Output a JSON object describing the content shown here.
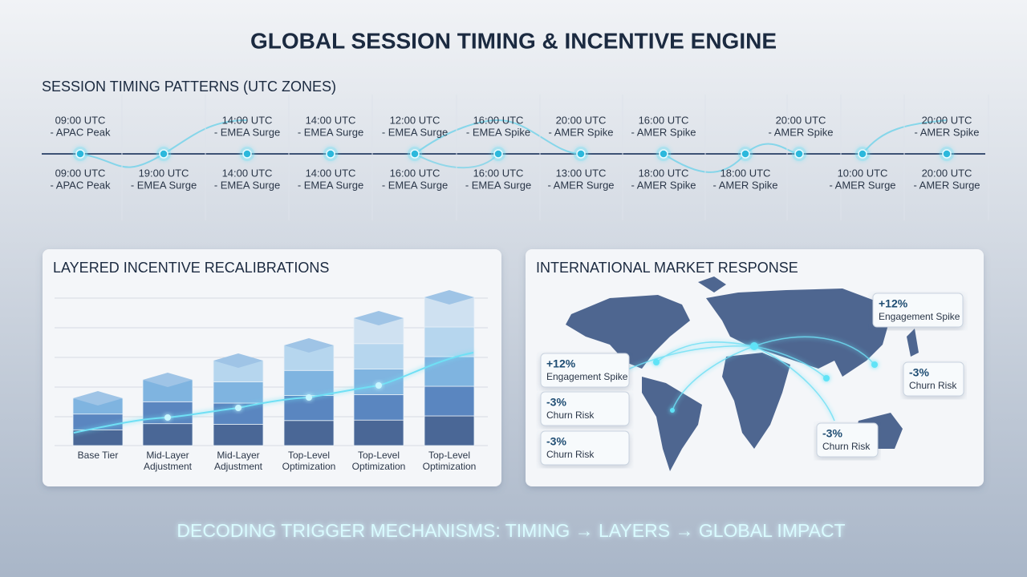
{
  "title": "GLOBAL SESSION TIMING & INCENTIVE ENGINE",
  "timing": {
    "title": "SESSION TIMING PATTERNS (UTC ZONES)",
    "top": [
      {
        "time": "09:00 UTC",
        "label": "- APAC Peak"
      },
      {
        "time": "14:00 UTC",
        "label": "- EMEA Surge"
      },
      {
        "time": "14:00 UTC",
        "label": "- EMEA Surge"
      },
      {
        "time": "12:00 UTC",
        "label": "- EMEA Surge"
      },
      {
        "time": "16:00 UTC",
        "label": "- EMEA Spike"
      },
      {
        "time": "20:00 UTC",
        "label": "- AMER Spike"
      },
      {
        "time": "16:00 UTC",
        "label": "- AMER Spike"
      },
      {
        "time": "20:00 UTC",
        "label": "- AMER Spike"
      },
      {
        "time": "20:00 UTC",
        "label": "- AMER Spike"
      }
    ],
    "bottom": [
      {
        "time": "09:00 UTC",
        "label": "- APAC Peak"
      },
      {
        "time": "19:00 UTC",
        "label": "- EMEA Surge"
      },
      {
        "time": "14:00 UTC",
        "label": "- EMEA Surge"
      },
      {
        "time": "14:00 UTC",
        "label": "- EMEA Surge"
      },
      {
        "time": "16:00 UTC",
        "label": "- EMEA Surge"
      },
      {
        "time": "16:00 UTC",
        "label": "- EMEA Surge"
      },
      {
        "time": "13:00 UTC",
        "label": "- AMER Surge"
      },
      {
        "time": "18:00 UTC",
        "label": "- AMER Spike"
      },
      {
        "time": "18:00 UTC",
        "label": "- AMER Spike"
      },
      {
        "time": "10:00 UTC",
        "label": "- AMER Surge"
      },
      {
        "time": "20:00 UTC",
        "label": "- AMER Surge"
      }
    ]
  },
  "incentives": {
    "title": "LAYERED INCENTIVE RECALIBRATIONS",
    "categories": [
      [
        "Base Tier"
      ],
      [
        "Mid-Layer",
        "Adjustment"
      ],
      [
        "Mid-Layer",
        "Adjustment"
      ],
      [
        "Top-Level",
        "Optimization"
      ],
      [
        "Top-Level",
        "Optimization"
      ],
      [
        "Top-Level",
        "Optimization"
      ]
    ]
  },
  "market": {
    "title": "INTERNATIONAL MARKET RESPONSE",
    "callouts": [
      {
        "value": "+12%",
        "label": "Engagement Spike"
      },
      {
        "value": "+12%",
        "label": "Engagement Spike"
      },
      {
        "value": "-3%",
        "label": "Churn Risk"
      },
      {
        "value": "-3%",
        "label": "Churn Risk"
      },
      {
        "value": "-3%",
        "label": "Churn Risk"
      },
      {
        "value": "-3%",
        "label": "Churn Risk"
      }
    ]
  },
  "footer": "DECODING TRIGGER MECHANISMS: TIMING → LAYERS → GLOBAL IMPACT"
}
